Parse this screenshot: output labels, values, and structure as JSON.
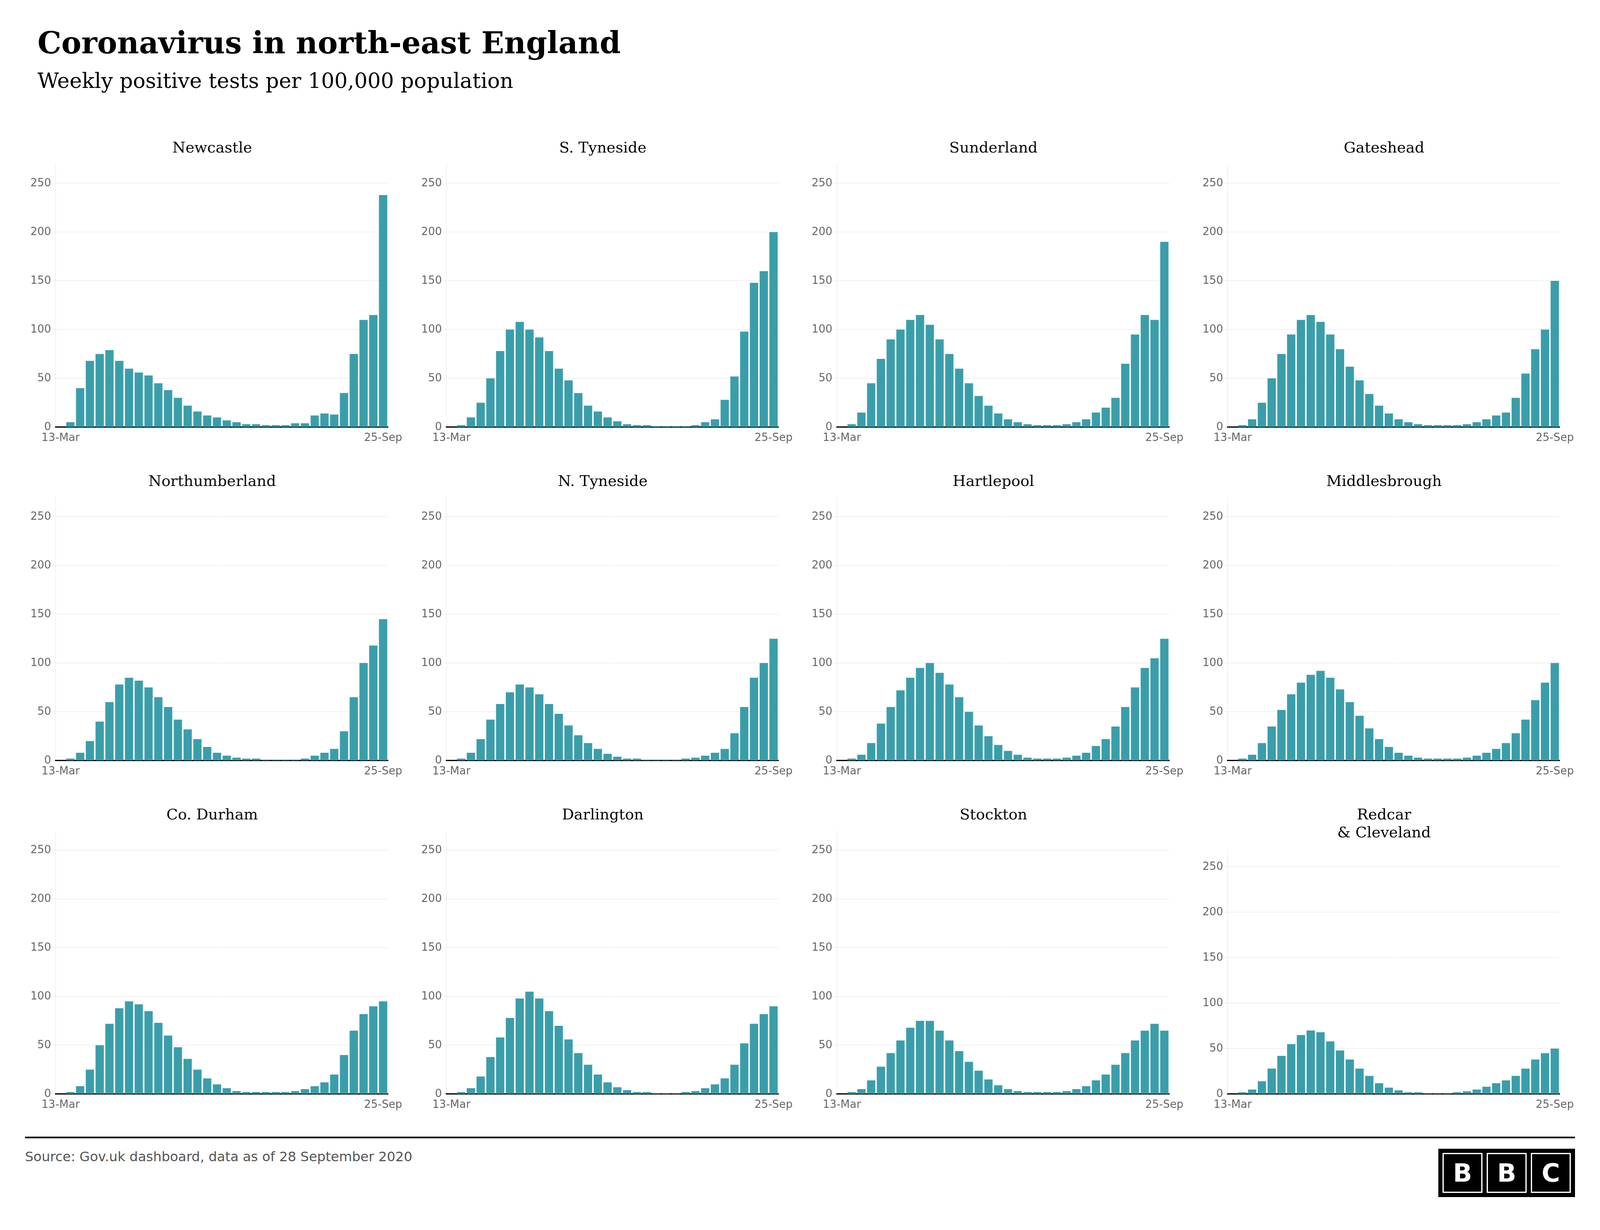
{
  "title": "Coronavirus in north-east England",
  "subtitle": "Weekly positive tests per 100,000 population",
  "source": "Source: Gov.uk dashboard, data as of 28 September 2020",
  "annotations": [
    "BBC"
  ],
  "chart_data": [
    {
      "type": "bar",
      "title": "Newcastle",
      "color": "#3a9eaa",
      "grid": true,
      "ylim": [
        0,
        270
      ],
      "yticks": [
        0,
        50,
        100,
        150,
        200,
        250
      ],
      "categories": [
        "13-Mar",
        null,
        null,
        null,
        null,
        null,
        null,
        null,
        null,
        null,
        null,
        null,
        null,
        null,
        null,
        null,
        null,
        null,
        null,
        null,
        null,
        null,
        null,
        null,
        null,
        null,
        null,
        null,
        null,
        null,
        null,
        null,
        null,
        "25-Sep"
      ],
      "values": [
        0,
        5,
        40,
        68,
        75,
        79,
        68,
        60,
        56,
        53,
        45,
        38,
        30,
        22,
        16,
        12,
        10,
        7,
        5,
        3,
        3,
        2,
        2,
        2,
        4,
        4,
        12,
        14,
        13,
        35,
        75,
        110,
        115,
        238
      ]
    },
    {
      "type": "bar",
      "title": "S. Tyneside",
      "color": "#3a9eaa",
      "grid": true,
      "ylim": [
        0,
        270
      ],
      "yticks": [
        0,
        50,
        100,
        150,
        200,
        250
      ],
      "categories": [
        "13-Mar",
        null,
        null,
        null,
        null,
        null,
        null,
        null,
        null,
        null,
        null,
        null,
        null,
        null,
        null,
        null,
        null,
        null,
        null,
        null,
        null,
        null,
        null,
        null,
        null,
        null,
        null,
        null,
        null,
        null,
        null,
        null,
        null,
        "25-Sep"
      ],
      "values": [
        0,
        2,
        10,
        25,
        50,
        78,
        100,
        108,
        100,
        92,
        78,
        60,
        48,
        35,
        22,
        16,
        10,
        6,
        3,
        2,
        2,
        1,
        1,
        1,
        1,
        2,
        5,
        8,
        28,
        52,
        98,
        148,
        160,
        200
      ]
    },
    {
      "type": "bar",
      "title": "Sunderland",
      "color": "#3a9eaa",
      "grid": true,
      "ylim": [
        0,
        270
      ],
      "yticks": [
        0,
        50,
        100,
        150,
        200,
        250
      ],
      "categories": [
        "13-Mar",
        null,
        null,
        null,
        null,
        null,
        null,
        null,
        null,
        null,
        null,
        null,
        null,
        null,
        null,
        null,
        null,
        null,
        null,
        null,
        null,
        null,
        null,
        null,
        null,
        null,
        null,
        null,
        null,
        null,
        null,
        null,
        null,
        "25-Sep"
      ],
      "values": [
        0,
        3,
        15,
        45,
        70,
        90,
        100,
        110,
        115,
        105,
        90,
        75,
        60,
        45,
        32,
        22,
        14,
        8,
        5,
        3,
        2,
        2,
        2,
        3,
        5,
        8,
        15,
        20,
        30,
        65,
        95,
        115,
        110,
        190
      ]
    },
    {
      "type": "bar",
      "title": "Gateshead",
      "color": "#3a9eaa",
      "grid": true,
      "ylim": [
        0,
        270
      ],
      "yticks": [
        0,
        50,
        100,
        150,
        200,
        250
      ],
      "categories": [
        "13-Mar",
        null,
        null,
        null,
        null,
        null,
        null,
        null,
        null,
        null,
        null,
        null,
        null,
        null,
        null,
        null,
        null,
        null,
        null,
        null,
        null,
        null,
        null,
        null,
        null,
        null,
        null,
        null,
        null,
        null,
        null,
        null,
        null,
        "25-Sep"
      ],
      "values": [
        0,
        2,
        8,
        25,
        50,
        75,
        95,
        110,
        115,
        108,
        95,
        80,
        62,
        48,
        34,
        22,
        14,
        8,
        5,
        3,
        2,
        2,
        2,
        2,
        3,
        5,
        8,
        12,
        15,
        30,
        55,
        80,
        100,
        150
      ]
    },
    {
      "type": "bar",
      "title": "Northumberland",
      "color": "#3a9eaa",
      "grid": true,
      "ylim": [
        0,
        270
      ],
      "yticks": [
        0,
        50,
        100,
        150,
        200,
        250
      ],
      "categories": [
        "13-Mar",
        null,
        null,
        null,
        null,
        null,
        null,
        null,
        null,
        null,
        null,
        null,
        null,
        null,
        null,
        null,
        null,
        null,
        null,
        null,
        null,
        null,
        null,
        null,
        null,
        null,
        null,
        null,
        null,
        null,
        null,
        null,
        null,
        "25-Sep"
      ],
      "values": [
        0,
        2,
        8,
        20,
        40,
        60,
        78,
        85,
        82,
        75,
        65,
        55,
        42,
        32,
        22,
        14,
        8,
        5,
        3,
        2,
        2,
        1,
        1,
        1,
        1,
        2,
        5,
        8,
        12,
        30,
        65,
        100,
        118,
        145
      ]
    },
    {
      "type": "bar",
      "title": "N. Tyneside",
      "color": "#3a9eaa",
      "grid": true,
      "ylim": [
        0,
        270
      ],
      "yticks": [
        0,
        50,
        100,
        150,
        200,
        250
      ],
      "categories": [
        "13-Mar",
        null,
        null,
        null,
        null,
        null,
        null,
        null,
        null,
        null,
        null,
        null,
        null,
        null,
        null,
        null,
        null,
        null,
        null,
        null,
        null,
        null,
        null,
        null,
        null,
        null,
        null,
        null,
        null,
        null,
        null,
        null,
        null,
        "25-Sep"
      ],
      "values": [
        0,
        2,
        8,
        22,
        42,
        58,
        70,
        78,
        75,
        68,
        58,
        48,
        36,
        26,
        18,
        12,
        7,
        4,
        2,
        2,
        1,
        1,
        1,
        1,
        2,
        3,
        5,
        8,
        12,
        28,
        55,
        85,
        100,
        125
      ]
    },
    {
      "type": "bar",
      "title": "Hartlepool",
      "color": "#3a9eaa",
      "grid": true,
      "ylim": [
        0,
        270
      ],
      "yticks": [
        0,
        50,
        100,
        150,
        200,
        250
      ],
      "categories": [
        "13-Mar",
        null,
        null,
        null,
        null,
        null,
        null,
        null,
        null,
        null,
        null,
        null,
        null,
        null,
        null,
        null,
        null,
        null,
        null,
        null,
        null,
        null,
        null,
        null,
        null,
        null,
        null,
        null,
        null,
        null,
        null,
        null,
        null,
        "25-Sep"
      ],
      "values": [
        0,
        2,
        6,
        18,
        38,
        55,
        72,
        85,
        95,
        100,
        90,
        78,
        65,
        50,
        36,
        25,
        16,
        10,
        6,
        3,
        2,
        2,
        2,
        3,
        5,
        8,
        15,
        22,
        35,
        55,
        75,
        95,
        105,
        125
      ]
    },
    {
      "type": "bar",
      "title": "Middlesbrough",
      "color": "#3a9eaa",
      "grid": true,
      "ylim": [
        0,
        270
      ],
      "yticks": [
        0,
        50,
        100,
        150,
        200,
        250
      ],
      "categories": [
        "13-Mar",
        null,
        null,
        null,
        null,
        null,
        null,
        null,
        null,
        null,
        null,
        null,
        null,
        null,
        null,
        null,
        null,
        null,
        null,
        null,
        null,
        null,
        null,
        null,
        null,
        null,
        null,
        null,
        null,
        null,
        null,
        null,
        null,
        "25-Sep"
      ],
      "values": [
        0,
        2,
        6,
        18,
        35,
        52,
        68,
        80,
        88,
        92,
        85,
        73,
        60,
        46,
        33,
        22,
        14,
        8,
        5,
        3,
        2,
        2,
        2,
        2,
        3,
        5,
        8,
        12,
        18,
        28,
        42,
        62,
        80,
        100
      ]
    },
    {
      "type": "bar",
      "title": "Co. Durham",
      "color": "#3a9eaa",
      "grid": true,
      "ylim": [
        0,
        270
      ],
      "yticks": [
        0,
        50,
        100,
        150,
        200,
        250
      ],
      "categories": [
        "13-Mar",
        null,
        null,
        null,
        null,
        null,
        null,
        null,
        null,
        null,
        null,
        null,
        null,
        null,
        null,
        null,
        null,
        null,
        null,
        null,
        null,
        null,
        null,
        null,
        null,
        null,
        null,
        null,
        null,
        null,
        null,
        null,
        null,
        "25-Sep"
      ],
      "values": [
        0,
        2,
        8,
        25,
        50,
        72,
        88,
        95,
        92,
        85,
        73,
        60,
        48,
        36,
        25,
        16,
        10,
        6,
        3,
        2,
        2,
        2,
        2,
        2,
        3,
        5,
        8,
        12,
        20,
        40,
        65,
        82,
        90,
        95
      ]
    },
    {
      "type": "bar",
      "title": "Darlington",
      "color": "#3a9eaa",
      "grid": true,
      "ylim": [
        0,
        270
      ],
      "yticks": [
        0,
        50,
        100,
        150,
        200,
        250
      ],
      "categories": [
        "13-Mar",
        null,
        null,
        null,
        null,
        null,
        null,
        null,
        null,
        null,
        null,
        null,
        null,
        null,
        null,
        null,
        null,
        null,
        null,
        null,
        null,
        null,
        null,
        null,
        null,
        null,
        null,
        null,
        null,
        null,
        null,
        null,
        null,
        "25-Sep"
      ],
      "values": [
        0,
        2,
        6,
        18,
        38,
        58,
        78,
        98,
        105,
        98,
        85,
        70,
        56,
        42,
        30,
        20,
        12,
        7,
        4,
        2,
        2,
        1,
        1,
        1,
        2,
        3,
        6,
        10,
        16,
        30,
        52,
        72,
        82,
        90
      ]
    },
    {
      "type": "bar",
      "title": "Stockton",
      "color": "#3a9eaa",
      "grid": true,
      "ylim": [
        0,
        270
      ],
      "yticks": [
        0,
        50,
        100,
        150,
        200,
        250
      ],
      "categories": [
        "13-Mar",
        null,
        null,
        null,
        null,
        null,
        null,
        null,
        null,
        null,
        null,
        null,
        null,
        null,
        null,
        null,
        null,
        null,
        null,
        null,
        null,
        null,
        null,
        null,
        null,
        null,
        null,
        null,
        null,
        null,
        null,
        null,
        null,
        "25-Sep"
      ],
      "values": [
        0,
        2,
        5,
        14,
        28,
        42,
        55,
        68,
        75,
        75,
        65,
        55,
        44,
        33,
        24,
        15,
        9,
        5,
        3,
        2,
        2,
        2,
        2,
        3,
        5,
        8,
        14,
        20,
        30,
        42,
        55,
        65,
        72,
        65
      ]
    },
    {
      "type": "bar",
      "title": "Redcar\n& Cleveland",
      "color": "#3a9eaa",
      "grid": true,
      "ylim": [
        0,
        270
      ],
      "yticks": [
        0,
        50,
        100,
        150,
        200,
        250
      ],
      "categories": [
        "13-Mar",
        null,
        null,
        null,
        null,
        null,
        null,
        null,
        null,
        null,
        null,
        null,
        null,
        null,
        null,
        null,
        null,
        null,
        null,
        null,
        null,
        null,
        null,
        null,
        null,
        null,
        null,
        null,
        null,
        null,
        null,
        null,
        null,
        "25-Sep"
      ],
      "values": [
        0,
        2,
        5,
        14,
        28,
        42,
        55,
        65,
        70,
        68,
        58,
        48,
        38,
        28,
        20,
        12,
        7,
        4,
        2,
        2,
        1,
        1,
        1,
        2,
        3,
        5,
        8,
        12,
        15,
        20,
        28,
        38,
        45,
        50
      ]
    }
  ]
}
